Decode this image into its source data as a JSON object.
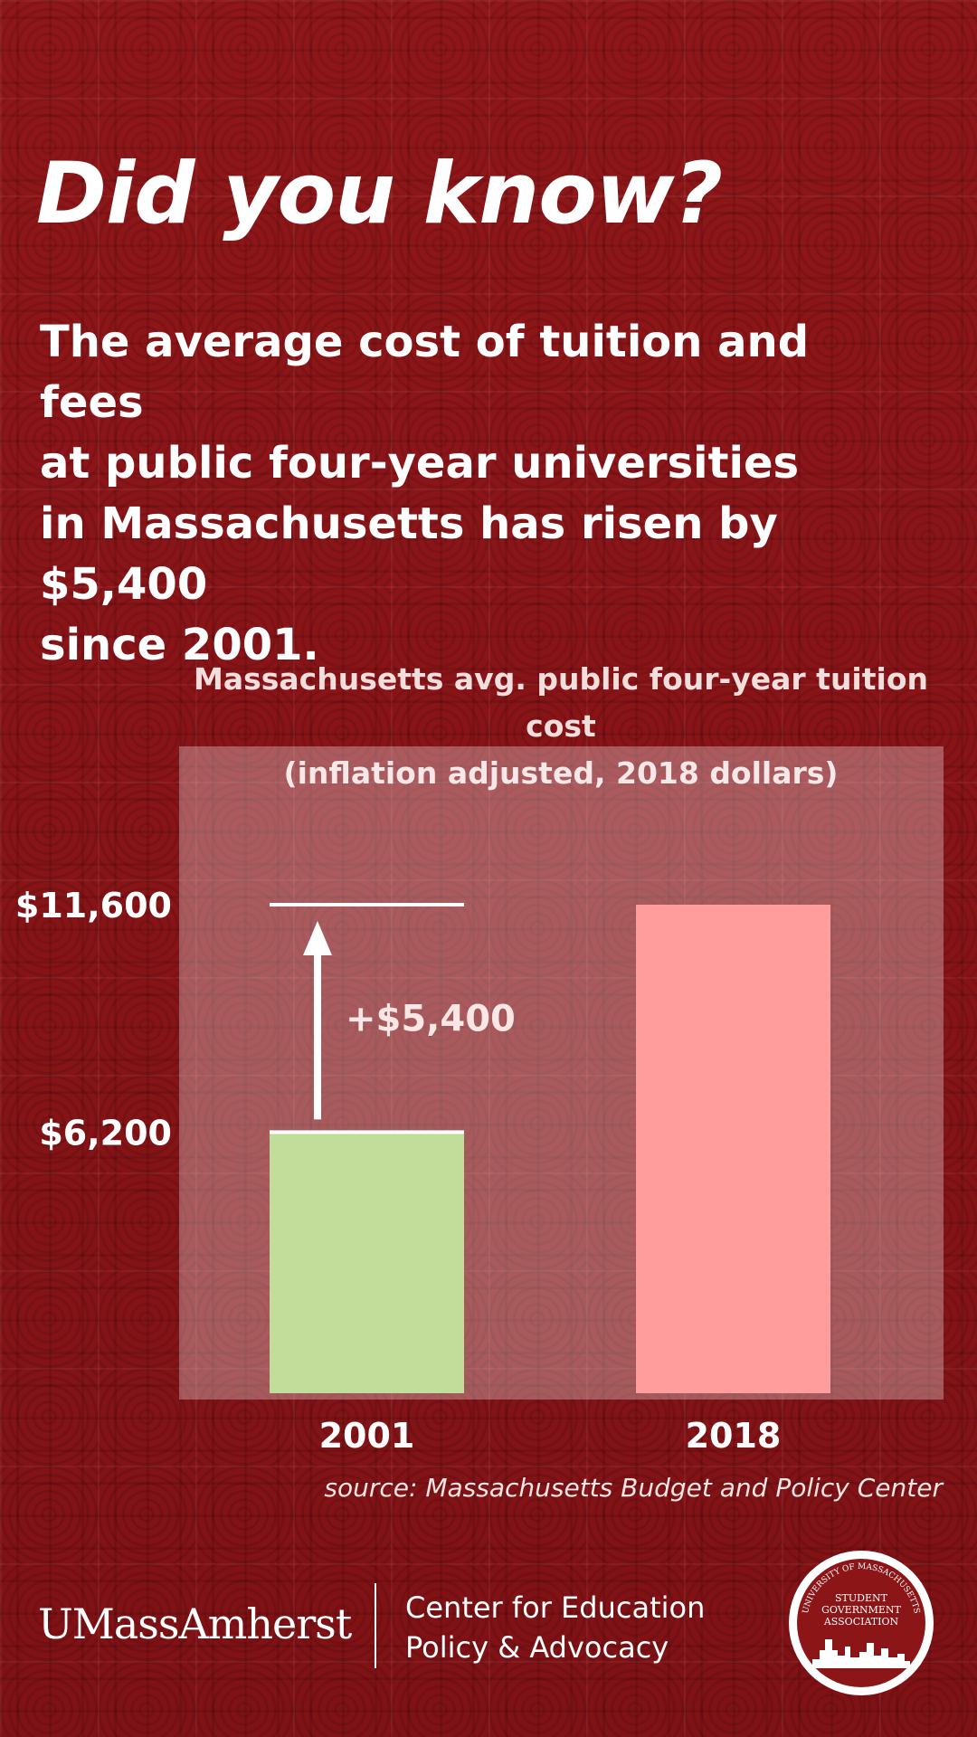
{
  "headline": "Did you know?",
  "subtext": {
    "line1": "The average cost of tuition and fees",
    "line2": "at public four-year universities",
    "line3": "in Massachusetts has risen by $5,400",
    "line4": "since 2001."
  },
  "chart_data": {
    "type": "bar",
    "title": "Massachusetts avg. public four-year tuition cost",
    "subtitle": "(inflation adjusted, 2018 dollars)",
    "categories": [
      "2001",
      "2018"
    ],
    "values": [
      6200,
      11600
    ],
    "value_labels": [
      "$6,200",
      "$11,600"
    ],
    "bar_colors": [
      "#c2dd9a",
      "#ff9c9c"
    ],
    "ylim": [
      0,
      11600
    ],
    "grid": false,
    "annotation": {
      "text": "+$5,400",
      "from": 6200,
      "to": 11600
    }
  },
  "source": "source: Massachusetts Budget and Policy Center",
  "footer": {
    "logo": "UMassAmherst",
    "center_line1": "Center for Education",
    "center_line2": "Policy & Advocacy",
    "seal_top": "UNIVERSITY OF MASSACHUSETTS",
    "seal_line1": "STUDENT",
    "seal_line2": "GOVERNMENT",
    "seal_line3": "ASSOCIATION"
  },
  "colors": {
    "background": "#8c1518",
    "panel": "rgba(255,255,255,0.3)"
  }
}
